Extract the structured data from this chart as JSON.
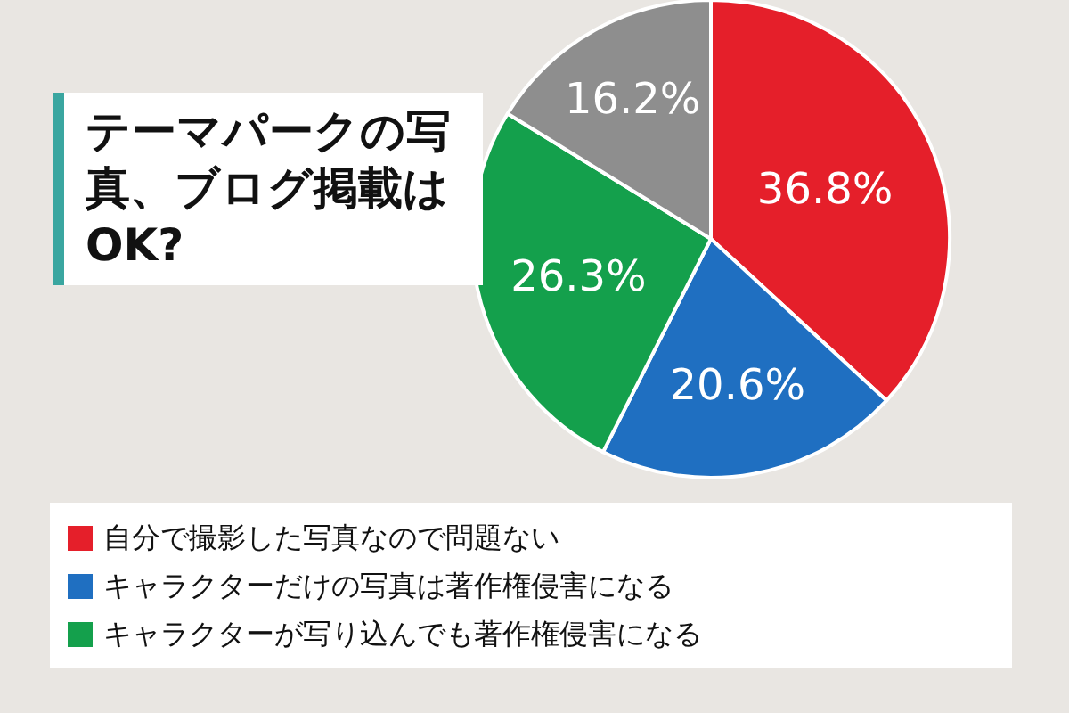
{
  "chart_data": {
    "type": "pie",
    "title": "テーマパークの写真、ブログ掲載はOK?",
    "categories": [
      "自分で撮影した写真なので問題ない",
      "キャラクターだけの写真は著作権侵害になる",
      "キャラクターが写り込んでも著作権侵害になる",
      null
    ],
    "values": [
      36.8,
      20.6,
      26.3,
      16.2
    ],
    "colors": [
      "#e51f2a",
      "#1f6fc1",
      "#14a04c",
      "#8e8e8e"
    ],
    "value_labels": [
      "36.8%",
      "20.6%",
      "26.3%",
      "16.2%"
    ],
    "legend": "bottom"
  }
}
